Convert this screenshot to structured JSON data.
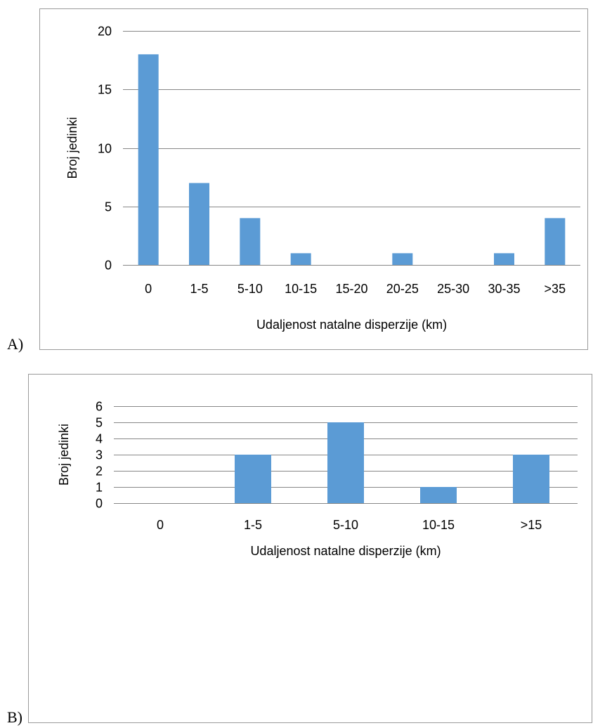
{
  "panels": {
    "a": {
      "label": "A)"
    },
    "b": {
      "label": "B)"
    }
  },
  "chart_data": [
    {
      "type": "bar",
      "categories": [
        "0",
        "1-5",
        "5-10",
        "10-15",
        "15-20",
        "20-25",
        "25-30",
        "30-35",
        ">35"
      ],
      "values": [
        18,
        7,
        4,
        1,
        0,
        1,
        0,
        1,
        4
      ],
      "xlabel": "Udaljenost natalne disperzije (km)",
      "ylabel": "Broj jedinki",
      "ylim": [
        0,
        20
      ],
      "yticks": [
        0,
        5,
        10,
        15,
        20
      ],
      "grid": true,
      "bar_color": "#5B9BD5"
    },
    {
      "type": "bar",
      "categories": [
        "0",
        "1-5",
        "5-10",
        "10-15",
        ">15"
      ],
      "values": [
        0,
        3,
        5,
        1,
        3
      ],
      "xlabel": "Udaljenost natalne disperzije (km)",
      "ylabel": "Broj jedinki",
      "ylim": [
        0,
        6
      ],
      "yticks": [
        0,
        1,
        2,
        3,
        4,
        5,
        6
      ],
      "grid": true,
      "bar_color": "#5B9BD5"
    }
  ]
}
